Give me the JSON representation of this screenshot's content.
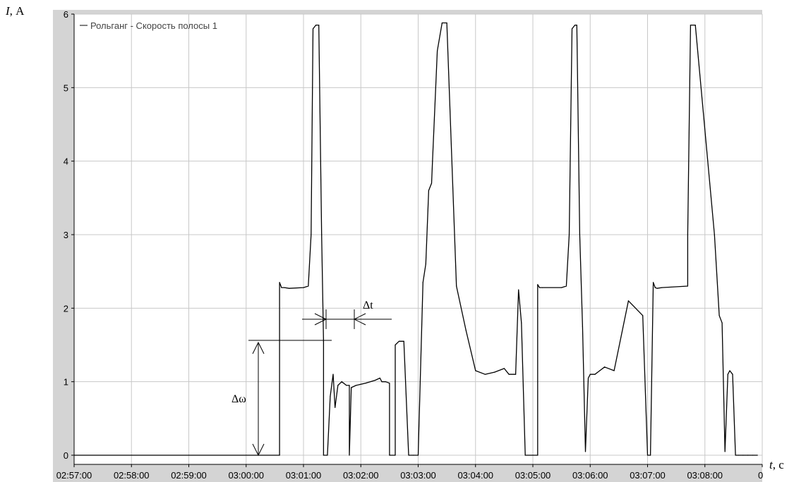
{
  "chart_data": {
    "type": "line",
    "xlabel_symbol": "t",
    "xlabel_unit": ", с",
    "ylabel_symbol": "I",
    "ylabel_unit": ", А",
    "ylim": [
      0,
      6
    ],
    "xlim": [
      "02:57:00",
      "03:09:00"
    ],
    "grid": true,
    "legend_position": "top-left",
    "x_ticks": [
      "02:57:00",
      "02:58:00",
      "02:59:00",
      "03:00:00",
      "03:01:00",
      "03:02:00",
      "03:03:00",
      "03:04:00",
      "03:05:00",
      "03:06:00",
      "03:07:00",
      "03:08:00",
      "0"
    ],
    "y_ticks": [
      "0",
      "1",
      "2",
      "3",
      "4",
      "5",
      "6"
    ],
    "series": [
      {
        "name": "Рольганг - Скорость полосы 1",
        "color": "#000000",
        "x": [
          "02:57:00",
          "03:00:35",
          "03:00:35",
          "03:00:37",
          "03:00:40",
          "03:00:45",
          "03:01:00",
          "03:01:05",
          "03:01:08",
          "03:01:10",
          "03:01:13",
          "03:01:16",
          "03:01:19",
          "03:01:21",
          "03:01:21",
          "03:01:25",
          "03:01:28",
          "03:01:31",
          "03:01:33",
          "03:01:36",
          "03:01:40",
          "03:01:45",
          "03:01:48",
          "03:01:48",
          "03:01:50",
          "03:01:55",
          "03:02:05",
          "03:02:15",
          "03:02:20",
          "03:02:22",
          "03:02:26",
          "03:02:30",
          "03:02:30",
          "03:02:36",
          "03:02:36",
          "03:02:40",
          "03:02:45",
          "03:02:50",
          "03:02:55",
          "03:03:00",
          "03:03:05",
          "03:03:08",
          "03:03:11",
          "03:03:14",
          "03:03:15",
          "03:03:20",
          "03:03:25",
          "03:03:30",
          "03:03:40",
          "03:03:50",
          "03:04:00",
          "03:04:10",
          "03:04:20",
          "03:04:30",
          "03:04:35",
          "03:04:42",
          "03:04:45",
          "03:04:48",
          "03:04:52",
          "03:04:52",
          "03:05:05",
          "03:05:05",
          "03:05:07",
          "03:05:10",
          "03:05:30",
          "03:05:35",
          "03:05:38",
          "03:05:41",
          "03:05:44",
          "03:05:46",
          "03:05:49",
          "03:05:52",
          "03:05:55",
          "03:05:58",
          "03:06:00",
          "03:06:05",
          "03:06:07",
          "03:06:10",
          "03:06:15",
          "03:06:25",
          "03:06:40",
          "03:06:55",
          "03:07:00",
          "03:07:03",
          "03:07:06",
          "03:07:08",
          "03:07:10",
          "03:07:15",
          "03:07:42",
          "03:07:42",
          "03:07:45",
          "03:07:50",
          "03:08:10",
          "03:08:15",
          "03:08:18",
          "03:08:21",
          "03:08:24",
          "03:08:26",
          "03:08:29",
          "03:08:32",
          "03:08:35",
          "03:08:40",
          "03:08:45",
          "03:08:50",
          "03:08:55"
        ],
        "values": [
          0,
          0,
          2.35,
          2.28,
          2.28,
          2.27,
          2.28,
          2.3,
          3.0,
          5.8,
          5.85,
          5.85,
          3.0,
          1.55,
          0,
          0,
          0.8,
          1.1,
          0.65,
          0.95,
          1.0,
          0.95,
          0.95,
          0,
          0.92,
          0.95,
          0.98,
          1.02,
          1.05,
          1.0,
          1.0,
          0.98,
          0,
          0,
          1.5,
          1.55,
          1.55,
          0,
          0,
          0,
          2.35,
          2.6,
          3.6,
          3.7,
          4.0,
          5.5,
          5.88,
          5.88,
          2.3,
          1.7,
          1.15,
          1.1,
          1.13,
          1.18,
          1.1,
          1.1,
          2.25,
          1.8,
          0,
          0,
          0,
          2.32,
          2.28,
          2.28,
          2.28,
          2.3,
          3.0,
          5.8,
          5.85,
          5.85,
          3.0,
          1.75,
          0.05,
          1.05,
          1.1,
          1.1,
          1.12,
          1.15,
          1.2,
          1.15,
          2.1,
          1.9,
          0,
          0,
          2.35,
          2.28,
          2.27,
          2.28,
          2.3,
          3.0,
          5.85,
          5.85,
          3.0,
          1.9,
          1.8,
          0.05,
          1.1,
          1.15,
          1.1,
          0,
          0,
          0,
          0,
          0,
          0
        ]
      }
    ],
    "annotations": [
      {
        "label": "Δt"
      },
      {
        "label": "Δω"
      }
    ]
  }
}
